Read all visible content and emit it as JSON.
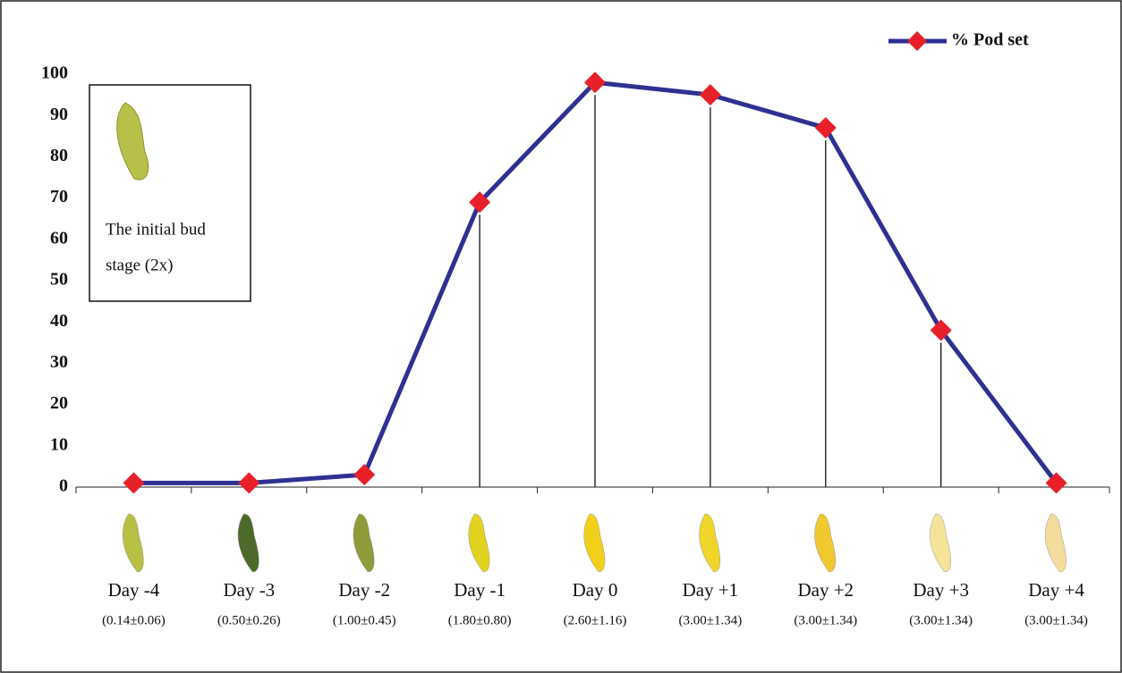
{
  "chart_data": {
    "type": "line",
    "categories": [
      "Day -4",
      "Day -3",
      "Day -2",
      "Day -1",
      "Day 0",
      "Day +1",
      "Day +2",
      "Day +3",
      "Day +4"
    ],
    "category_notes": [
      "(0.14±0.06)",
      "(0.50±0.26)",
      "(1.00±0.45)",
      "(1.80±0.80)",
      "(2.60±1.16)",
      "(3.00±1.34)",
      "(3.00±1.34)",
      "(3.00±1.34)",
      "(3.00±1.34)"
    ],
    "series": [
      {
        "name": "% Pod set",
        "color": "#2e3192",
        "marker_color": "#e8202a",
        "values": [
          1,
          1,
          3,
          69,
          98,
          95,
          87,
          38,
          1
        ]
      }
    ],
    "ylim": [
      0,
      100
    ],
    "yticks": [
      0,
      10,
      20,
      30,
      40,
      50,
      60,
      70,
      80,
      90,
      100
    ],
    "annotation": [
      "The initial bud",
      "stage (2x)"
    ],
    "legend": "top-right"
  }
}
